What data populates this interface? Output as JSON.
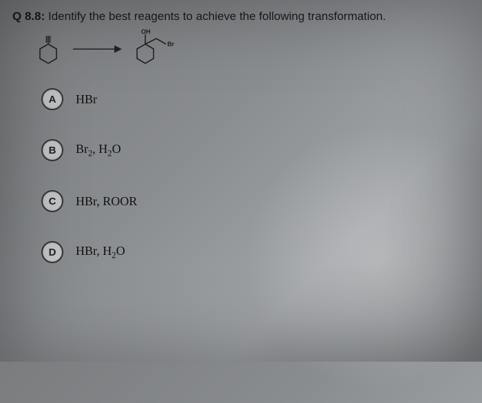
{
  "question": {
    "number": "Q 8.8:",
    "prompt": "Identify the best reagents to achieve the following transformation."
  },
  "reaction": {
    "arrow": "———▸",
    "product_labels": {
      "oh": "OH",
      "br": "Br"
    }
  },
  "options": [
    {
      "letter": "A",
      "html": "HBr"
    },
    {
      "letter": "B",
      "html": "Br<sub>2</sub>, H<sub>2</sub>O"
    },
    {
      "letter": "C",
      "html": "HBr, ROOR"
    },
    {
      "letter": "D",
      "html": "HBr, H<sub>2</sub>O"
    }
  ],
  "colors": {
    "stroke": "#222222"
  }
}
